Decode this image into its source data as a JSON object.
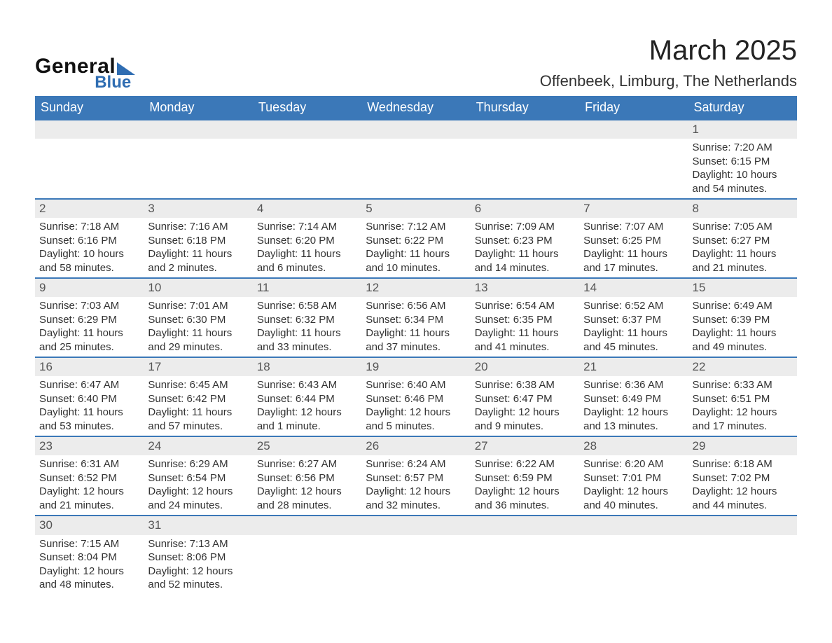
{
  "brand": {
    "word1": "General",
    "word2": "Blue",
    "accent_color": "#2f6db2"
  },
  "title": "March 2025",
  "location": "Offenbeek, Limburg, The Netherlands",
  "calendar": {
    "header_bg": "#3b78b8",
    "header_fg": "#ffffff",
    "daynum_bg": "#ececec",
    "rule_color": "#3b78b8",
    "text_color": "#333333",
    "columns": [
      "Sunday",
      "Monday",
      "Tuesday",
      "Wednesday",
      "Thursday",
      "Friday",
      "Saturday"
    ],
    "weeks": [
      [
        null,
        null,
        null,
        null,
        null,
        null,
        {
          "n": "1",
          "sunrise": "7:20 AM",
          "sunset": "6:15 PM",
          "daylight": "10 hours and 54 minutes."
        }
      ],
      [
        {
          "n": "2",
          "sunrise": "7:18 AM",
          "sunset": "6:16 PM",
          "daylight": "10 hours and 58 minutes."
        },
        {
          "n": "3",
          "sunrise": "7:16 AM",
          "sunset": "6:18 PM",
          "daylight": "11 hours and 2 minutes."
        },
        {
          "n": "4",
          "sunrise": "7:14 AM",
          "sunset": "6:20 PM",
          "daylight": "11 hours and 6 minutes."
        },
        {
          "n": "5",
          "sunrise": "7:12 AM",
          "sunset": "6:22 PM",
          "daylight": "11 hours and 10 minutes."
        },
        {
          "n": "6",
          "sunrise": "7:09 AM",
          "sunset": "6:23 PM",
          "daylight": "11 hours and 14 minutes."
        },
        {
          "n": "7",
          "sunrise": "7:07 AM",
          "sunset": "6:25 PM",
          "daylight": "11 hours and 17 minutes."
        },
        {
          "n": "8",
          "sunrise": "7:05 AM",
          "sunset": "6:27 PM",
          "daylight": "11 hours and 21 minutes."
        }
      ],
      [
        {
          "n": "9",
          "sunrise": "7:03 AM",
          "sunset": "6:29 PM",
          "daylight": "11 hours and 25 minutes."
        },
        {
          "n": "10",
          "sunrise": "7:01 AM",
          "sunset": "6:30 PM",
          "daylight": "11 hours and 29 minutes."
        },
        {
          "n": "11",
          "sunrise": "6:58 AM",
          "sunset": "6:32 PM",
          "daylight": "11 hours and 33 minutes."
        },
        {
          "n": "12",
          "sunrise": "6:56 AM",
          "sunset": "6:34 PM",
          "daylight": "11 hours and 37 minutes."
        },
        {
          "n": "13",
          "sunrise": "6:54 AM",
          "sunset": "6:35 PM",
          "daylight": "11 hours and 41 minutes."
        },
        {
          "n": "14",
          "sunrise": "6:52 AM",
          "sunset": "6:37 PM",
          "daylight": "11 hours and 45 minutes."
        },
        {
          "n": "15",
          "sunrise": "6:49 AM",
          "sunset": "6:39 PM",
          "daylight": "11 hours and 49 minutes."
        }
      ],
      [
        {
          "n": "16",
          "sunrise": "6:47 AM",
          "sunset": "6:40 PM",
          "daylight": "11 hours and 53 minutes."
        },
        {
          "n": "17",
          "sunrise": "6:45 AM",
          "sunset": "6:42 PM",
          "daylight": "11 hours and 57 minutes."
        },
        {
          "n": "18",
          "sunrise": "6:43 AM",
          "sunset": "6:44 PM",
          "daylight": "12 hours and 1 minute."
        },
        {
          "n": "19",
          "sunrise": "6:40 AM",
          "sunset": "6:46 PM",
          "daylight": "12 hours and 5 minutes."
        },
        {
          "n": "20",
          "sunrise": "6:38 AM",
          "sunset": "6:47 PM",
          "daylight": "12 hours and 9 minutes."
        },
        {
          "n": "21",
          "sunrise": "6:36 AM",
          "sunset": "6:49 PM",
          "daylight": "12 hours and 13 minutes."
        },
        {
          "n": "22",
          "sunrise": "6:33 AM",
          "sunset": "6:51 PM",
          "daylight": "12 hours and 17 minutes."
        }
      ],
      [
        {
          "n": "23",
          "sunrise": "6:31 AM",
          "sunset": "6:52 PM",
          "daylight": "12 hours and 21 minutes."
        },
        {
          "n": "24",
          "sunrise": "6:29 AM",
          "sunset": "6:54 PM",
          "daylight": "12 hours and 24 minutes."
        },
        {
          "n": "25",
          "sunrise": "6:27 AM",
          "sunset": "6:56 PM",
          "daylight": "12 hours and 28 minutes."
        },
        {
          "n": "26",
          "sunrise": "6:24 AM",
          "sunset": "6:57 PM",
          "daylight": "12 hours and 32 minutes."
        },
        {
          "n": "27",
          "sunrise": "6:22 AM",
          "sunset": "6:59 PM",
          "daylight": "12 hours and 36 minutes."
        },
        {
          "n": "28",
          "sunrise": "6:20 AM",
          "sunset": "7:01 PM",
          "daylight": "12 hours and 40 minutes."
        },
        {
          "n": "29",
          "sunrise": "6:18 AM",
          "sunset": "7:02 PM",
          "daylight": "12 hours and 44 minutes."
        }
      ],
      [
        {
          "n": "30",
          "sunrise": "7:15 AM",
          "sunset": "8:04 PM",
          "daylight": "12 hours and 48 minutes."
        },
        {
          "n": "31",
          "sunrise": "7:13 AM",
          "sunset": "8:06 PM",
          "daylight": "12 hours and 52 minutes."
        },
        null,
        null,
        null,
        null,
        null
      ]
    ],
    "labels": {
      "sunrise": "Sunrise: ",
      "sunset": "Sunset: ",
      "daylight": "Daylight: "
    }
  }
}
